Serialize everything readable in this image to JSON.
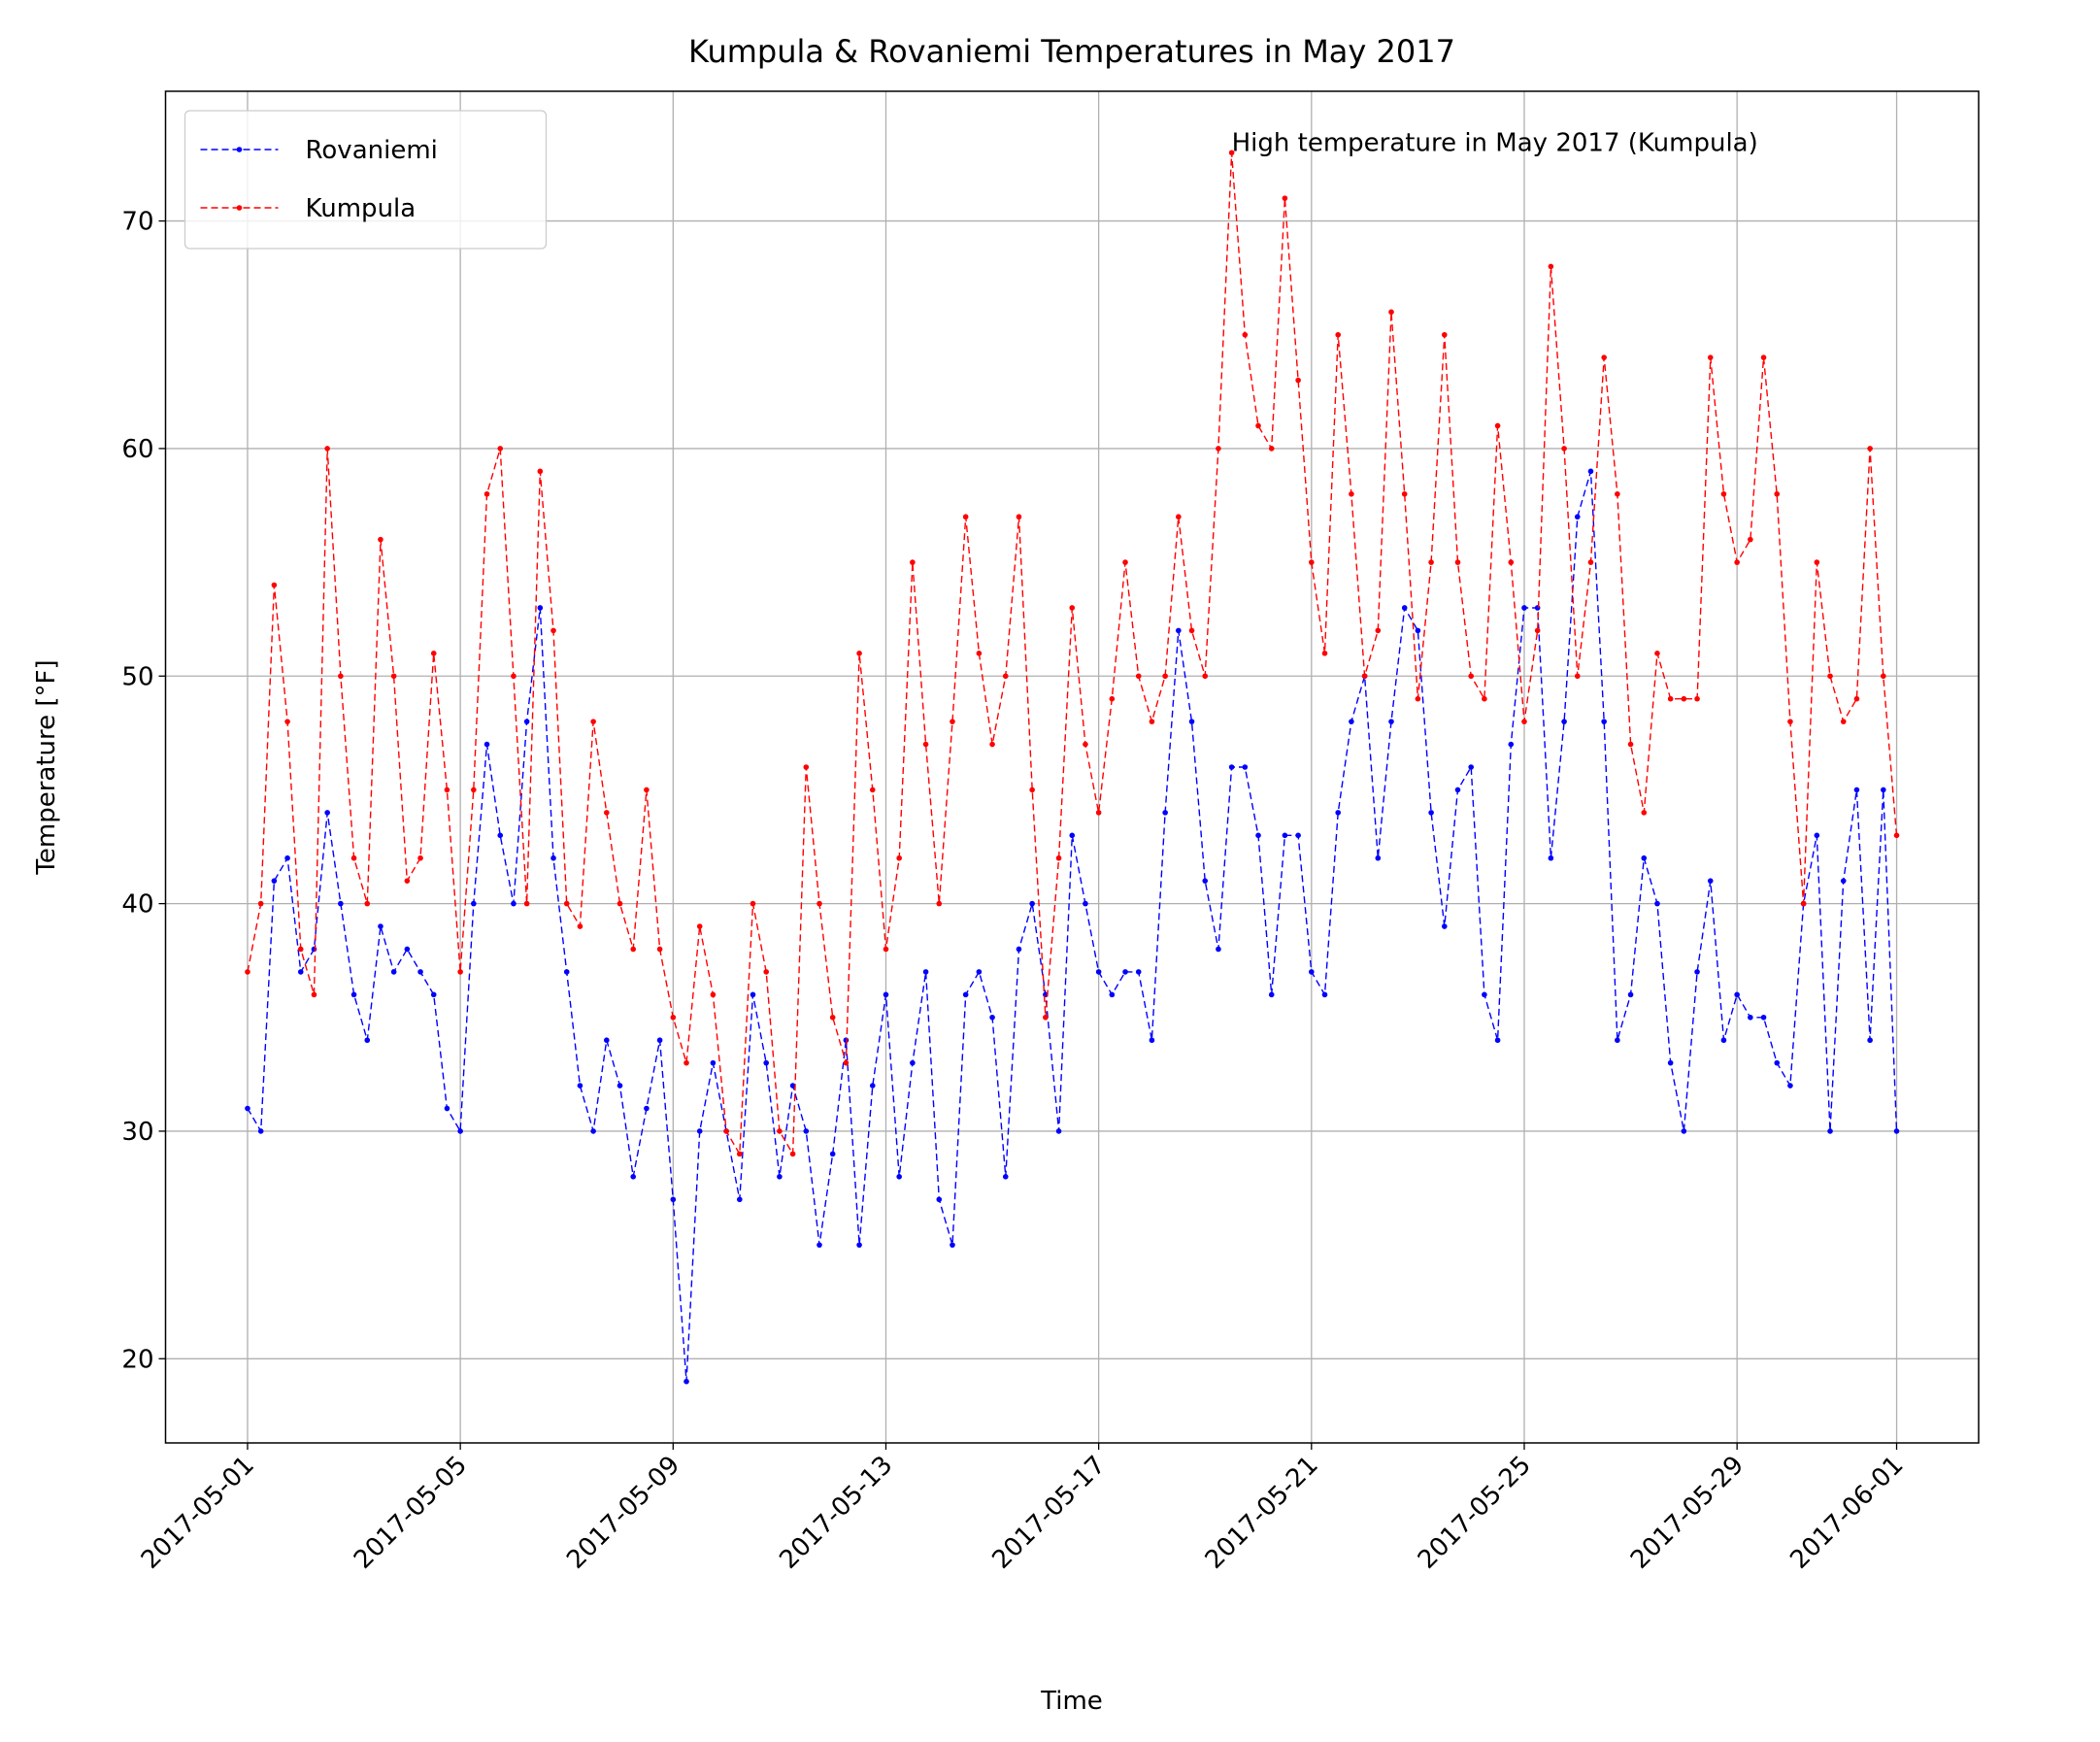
{
  "chart_data": {
    "type": "line",
    "title": "Kumpula & Rovaniemi Temperatures in May 2017",
    "xlabel": "Time",
    "ylabel": "Temperature [°F]",
    "annotation": "High temperature in May 2017 (Kumpula)",
    "x": [
      "2017-05-01 00:00",
      "2017-05-01 06:00",
      "2017-05-01 12:00",
      "2017-05-01 18:00",
      "2017-05-02 00:00",
      "2017-05-02 06:00",
      "2017-05-02 12:00",
      "2017-05-02 18:00",
      "2017-05-03 00:00",
      "2017-05-03 06:00",
      "2017-05-03 12:00",
      "2017-05-03 18:00",
      "2017-05-04 00:00",
      "2017-05-04 06:00",
      "2017-05-04 12:00",
      "2017-05-04 18:00",
      "2017-05-05 00:00",
      "2017-05-05 06:00",
      "2017-05-05 12:00",
      "2017-05-05 18:00",
      "2017-05-06 00:00",
      "2017-05-06 06:00",
      "2017-05-06 12:00",
      "2017-05-06 18:00",
      "2017-05-07 00:00",
      "2017-05-07 06:00",
      "2017-05-07 12:00",
      "2017-05-07 18:00",
      "2017-05-08 00:00",
      "2017-05-08 06:00",
      "2017-05-08 12:00",
      "2017-05-08 18:00",
      "2017-05-09 00:00",
      "2017-05-09 06:00",
      "2017-05-09 12:00",
      "2017-05-09 18:00",
      "2017-05-10 00:00",
      "2017-05-10 06:00",
      "2017-05-10 12:00",
      "2017-05-10 18:00",
      "2017-05-11 00:00",
      "2017-05-11 06:00",
      "2017-05-11 12:00",
      "2017-05-11 18:00",
      "2017-05-12 00:00",
      "2017-05-12 06:00",
      "2017-05-12 12:00",
      "2017-05-12 18:00",
      "2017-05-13 00:00",
      "2017-05-13 06:00",
      "2017-05-13 12:00",
      "2017-05-13 18:00",
      "2017-05-14 00:00",
      "2017-05-14 06:00",
      "2017-05-14 12:00",
      "2017-05-14 18:00",
      "2017-05-15 00:00",
      "2017-05-15 06:00",
      "2017-05-15 12:00",
      "2017-05-15 18:00",
      "2017-05-16 00:00",
      "2017-05-16 06:00",
      "2017-05-16 12:00",
      "2017-05-16 18:00",
      "2017-05-17 00:00",
      "2017-05-17 06:00",
      "2017-05-17 12:00",
      "2017-05-17 18:00",
      "2017-05-18 00:00",
      "2017-05-18 06:00",
      "2017-05-18 12:00",
      "2017-05-18 18:00",
      "2017-05-19 00:00",
      "2017-05-19 06:00",
      "2017-05-19 12:00",
      "2017-05-19 18:00",
      "2017-05-20 00:00",
      "2017-05-20 06:00",
      "2017-05-20 12:00",
      "2017-05-20 18:00",
      "2017-05-21 00:00",
      "2017-05-21 06:00",
      "2017-05-21 12:00",
      "2017-05-21 18:00",
      "2017-05-22 00:00",
      "2017-05-22 06:00",
      "2017-05-22 12:00",
      "2017-05-22 18:00",
      "2017-05-23 00:00",
      "2017-05-23 06:00",
      "2017-05-23 12:00",
      "2017-05-23 18:00",
      "2017-05-24 00:00",
      "2017-05-24 06:00",
      "2017-05-24 12:00",
      "2017-05-24 18:00",
      "2017-05-25 00:00",
      "2017-05-25 06:00",
      "2017-05-25 12:00",
      "2017-05-25 18:00",
      "2017-05-26 00:00",
      "2017-05-26 06:00",
      "2017-05-26 12:00",
      "2017-05-26 18:00",
      "2017-05-27 00:00",
      "2017-05-27 06:00",
      "2017-05-27 12:00",
      "2017-05-27 18:00",
      "2017-05-28 00:00",
      "2017-05-28 06:00",
      "2017-05-28 12:00",
      "2017-05-28 18:00",
      "2017-05-29 00:00",
      "2017-05-29 06:00",
      "2017-05-29 12:00",
      "2017-05-29 18:00",
      "2017-05-30 00:00",
      "2017-05-30 06:00",
      "2017-05-30 12:00",
      "2017-05-30 18:00",
      "2017-05-31 00:00",
      "2017-05-31 06:00",
      "2017-05-31 12:00",
      "2017-05-31 18:00",
      "2017-06-01 00:00"
    ],
    "series": [
      {
        "name": "Rovaniemi",
        "color": "#0000ff",
        "values": [
          31,
          30,
          41,
          42,
          37,
          38,
          44,
          40,
          36,
          34,
          39,
          37,
          38,
          37,
          36,
          31,
          30,
          40,
          47,
          43,
          40,
          48,
          53,
          42,
          37,
          32,
          30,
          34,
          32,
          28,
          31,
          34,
          27,
          19,
          30,
          33,
          30,
          27,
          36,
          33,
          28,
          32,
          30,
          25,
          29,
          34,
          25,
          32,
          36,
          28,
          33,
          37,
          27,
          25,
          36,
          37,
          35,
          28,
          38,
          40,
          36,
          30,
          43,
          40,
          37,
          36,
          37,
          37,
          34,
          44,
          52,
          48,
          41,
          38,
          46,
          46,
          43,
          36,
          43,
          43,
          37,
          36,
          44,
          48,
          50,
          42,
          48,
          53,
          52,
          44,
          39,
          45,
          46,
          36,
          34,
          47,
          53,
          53,
          42,
          48,
          57,
          59,
          48,
          34,
          36,
          42,
          40,
          33,
          30,
          37,
          41,
          34,
          36,
          35,
          35,
          33,
          32,
          40,
          43,
          30,
          41,
          45,
          34,
          45,
          30
        ]
      },
      {
        "name": "Kumpula",
        "color": "#ff0000",
        "values": [
          37,
          40,
          54,
          48,
          38,
          36,
          60,
          50,
          42,
          40,
          56,
          50,
          41,
          42,
          51,
          45,
          37,
          45,
          58,
          60,
          50,
          40,
          59,
          52,
          40,
          39,
          48,
          44,
          40,
          38,
          45,
          38,
          35,
          33,
          39,
          36,
          30,
          29,
          40,
          37,
          30,
          29,
          46,
          40,
          35,
          33,
          51,
          45,
          38,
          42,
          55,
          47,
          40,
          48,
          57,
          51,
          47,
          50,
          57,
          45,
          35,
          42,
          53,
          47,
          44,
          49,
          55,
          50,
          48,
          50,
          57,
          52,
          50,
          60,
          73,
          65,
          61,
          60,
          71,
          63,
          55,
          51,
          65,
          58,
          50,
          52,
          66,
          58,
          49,
          55,
          65,
          55,
          50,
          49,
          61,
          55,
          48,
          52,
          68,
          60,
          50,
          55,
          64,
          58,
          47,
          44,
          51,
          49,
          49,
          49,
          64,
          58,
          55,
          56,
          64,
          58,
          48,
          40,
          55,
          50,
          48,
          49,
          60,
          50,
          43
        ]
      }
    ],
    "xlim": [
      "2017-04-29 11:00",
      "2017-06-02 13:00"
    ],
    "xticks": [
      "2017-05-01",
      "2017-05-05",
      "2017-05-09",
      "2017-05-13",
      "2017-05-17",
      "2017-05-21",
      "2017-05-25",
      "2017-05-29",
      "2017-06-01"
    ],
    "ylim": [
      16.3,
      75.7
    ],
    "yticks": [
      20,
      30,
      40,
      50,
      60,
      70
    ],
    "grid": true,
    "legend": "upper left",
    "line_style": "dashed"
  }
}
